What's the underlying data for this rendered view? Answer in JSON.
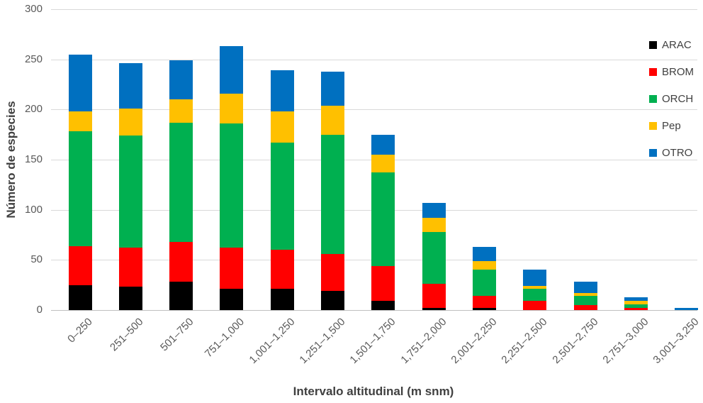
{
  "chart_data": {
    "type": "bar",
    "stacked": true,
    "title": "",
    "xlabel": "Intervalo altitudinal (m snm)",
    "ylabel": "Número de especies",
    "ylim": [
      0,
      300
    ],
    "yticks": [
      0,
      50,
      100,
      150,
      200,
      250,
      300
    ],
    "grid": true,
    "legend_position": "right-overlay",
    "categories": [
      "0–250",
      "251–500",
      "501–750",
      "751–1,000",
      "1,001–1,250",
      "1,251–1,500",
      "1,501–1,750",
      "1,751–2,000",
      "2,001–2,250",
      "2,251–2,500",
      "2,501–2,750",
      "2,751–3,000",
      "3,001–3,250"
    ],
    "series": [
      {
        "name": "ARAC",
        "color": "#000000",
        "values": [
          25,
          23,
          28,
          21,
          21,
          19,
          9,
          2,
          2,
          0,
          0,
          0,
          0
        ]
      },
      {
        "name": "BROM",
        "color": "#FF0000",
        "values": [
          39,
          39,
          40,
          41,
          39,
          37,
          35,
          24,
          12,
          9,
          5,
          2,
          0
        ]
      },
      {
        "name": "ORCH",
        "color": "#00B050",
        "values": [
          114,
          112,
          119,
          124,
          107,
          119,
          93,
          52,
          26,
          12,
          9,
          4,
          0
        ]
      },
      {
        "name": "Pep",
        "color": "#FFC000",
        "values": [
          20,
          27,
          23,
          30,
          31,
          29,
          18,
          14,
          9,
          3,
          3,
          3,
          0
        ]
      },
      {
        "name": "OTRO",
        "color": "#0070C0",
        "values": [
          57,
          45,
          39,
          47,
          41,
          34,
          20,
          15,
          14,
          16,
          11,
          4,
          2
        ]
      }
    ],
    "totals": [
      255,
      246,
      249,
      263,
      239,
      238,
      175,
      107,
      63,
      40,
      28,
      13,
      2
    ]
  },
  "style": {
    "grid_color": "#D9D9D9",
    "baseline_color": "#BFBFBF",
    "tick_text_color": "#595959",
    "title_text_color": "#404040",
    "background": "#FFFFFF"
  }
}
